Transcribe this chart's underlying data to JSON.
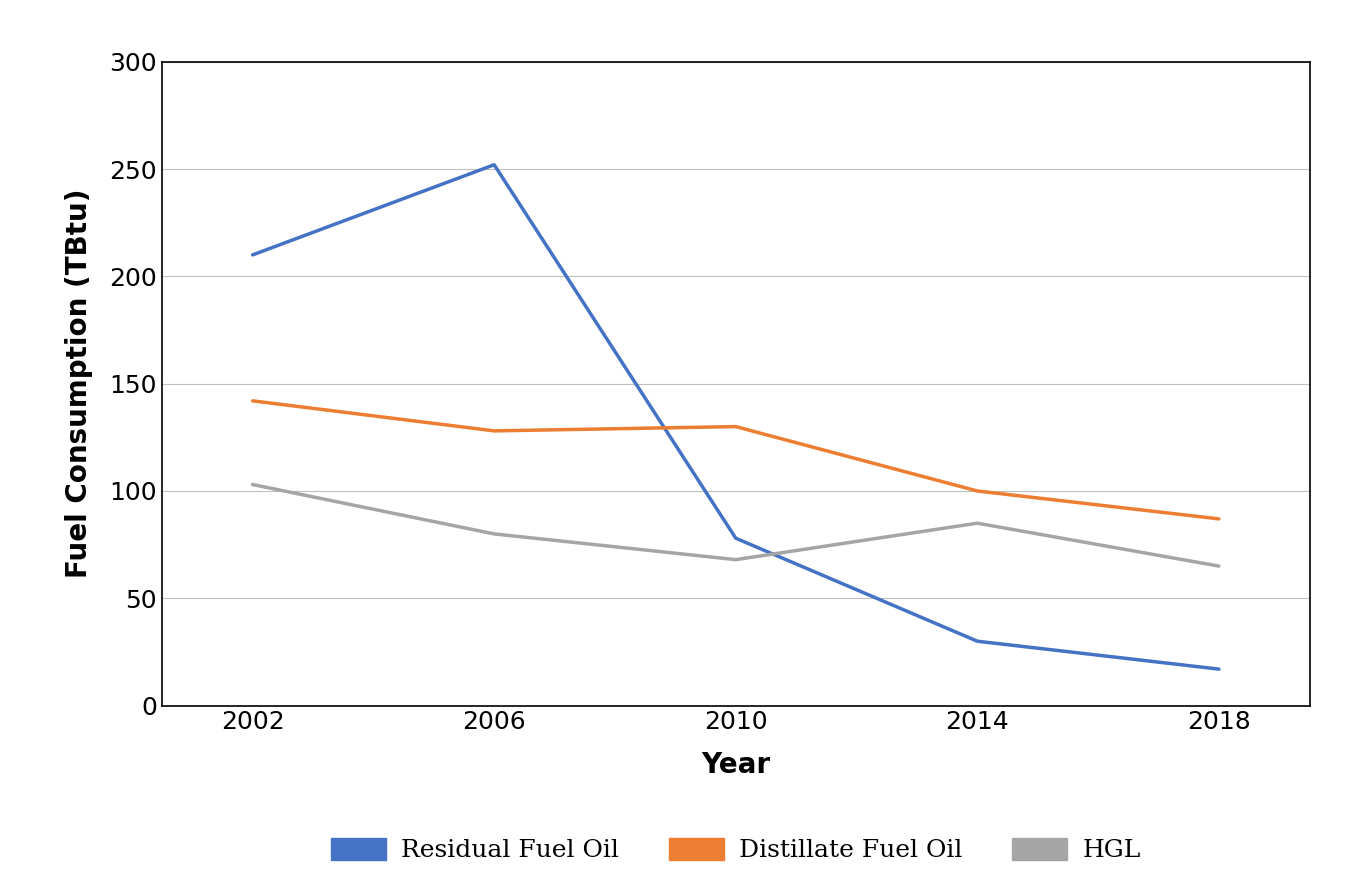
{
  "years": [
    2002,
    2006,
    2010,
    2014,
    2018
  ],
  "residual_fuel_oil": [
    210,
    252,
    78,
    30,
    17
  ],
  "distillate_fuel_oil": [
    142,
    128,
    130,
    100,
    87
  ],
  "hgl": [
    103,
    80,
    68,
    85,
    65
  ],
  "colors": {
    "residual": "#4472C4",
    "distillate": "#ED7D31",
    "hgl": "#A5A5A5"
  },
  "ylabel": "Fuel Consumption (TBtu)",
  "xlabel": "Year",
  "ylim": [
    0,
    280
  ],
  "yticks": [
    0,
    50,
    100,
    150,
    200,
    250,
    300
  ],
  "xticks": [
    2002,
    2006,
    2010,
    2014,
    2018
  ],
  "line_width": 2.5,
  "legend_labels": [
    "Residual Fuel Oil",
    "Distillate Fuel Oil",
    "HGL"
  ],
  "grid_color": "#C0C0C0",
  "background_color": "#FFFFFF",
  "font_family": "DejaVu Serif"
}
